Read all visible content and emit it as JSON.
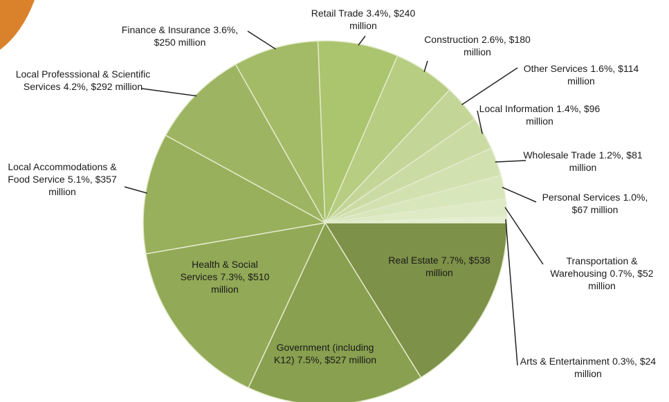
{
  "chart_data": {
    "type": "pie",
    "categories": [
      "Real Estate",
      "Government (including K12)",
      "Health & Social Services",
      "Local Accommodations & Food Service",
      "Local Professsional & Scientific Services",
      "Finance & Insurance",
      "Retail Trade",
      "Construction",
      "Other Services",
      "Local Information",
      "Wholesale Trade",
      "Personal Services",
      "Transportation & Warehousing",
      "Arts & Entertainment"
    ],
    "values": [
      7.7,
      7.5,
      7.3,
      5.1,
      4.2,
      3.6,
      3.4,
      2.6,
      1.6,
      1.4,
      1.2,
      1.0,
      0.7,
      0.3
    ],
    "value_labels": [
      "7.7%, $538 million",
      "7.5%, $527 million",
      "7.3%, $510 million",
      "5.1%, $357 million",
      "4.2%, $292 million",
      "3.6%, $250 million",
      "3.4%, $240 million",
      "2.6%, $180 million",
      "1.6%, $114 million",
      "1.4%, $96 million",
      "1.2%, $81 million",
      "1.0%, $67 million",
      "0.7%, $52 million",
      "0.3%, $24 million"
    ],
    "colors": [
      "#7d9148",
      "#88a04f",
      "#92a957",
      "#98af5c",
      "#9db562",
      "#a3bb66",
      "#abc46e",
      "#b6cd82",
      "#c3d698",
      "#cadca4",
      "#d1e1b0",
      "#d8e6bc",
      "#dee9c6",
      "#e5eed1"
    ]
  }
}
